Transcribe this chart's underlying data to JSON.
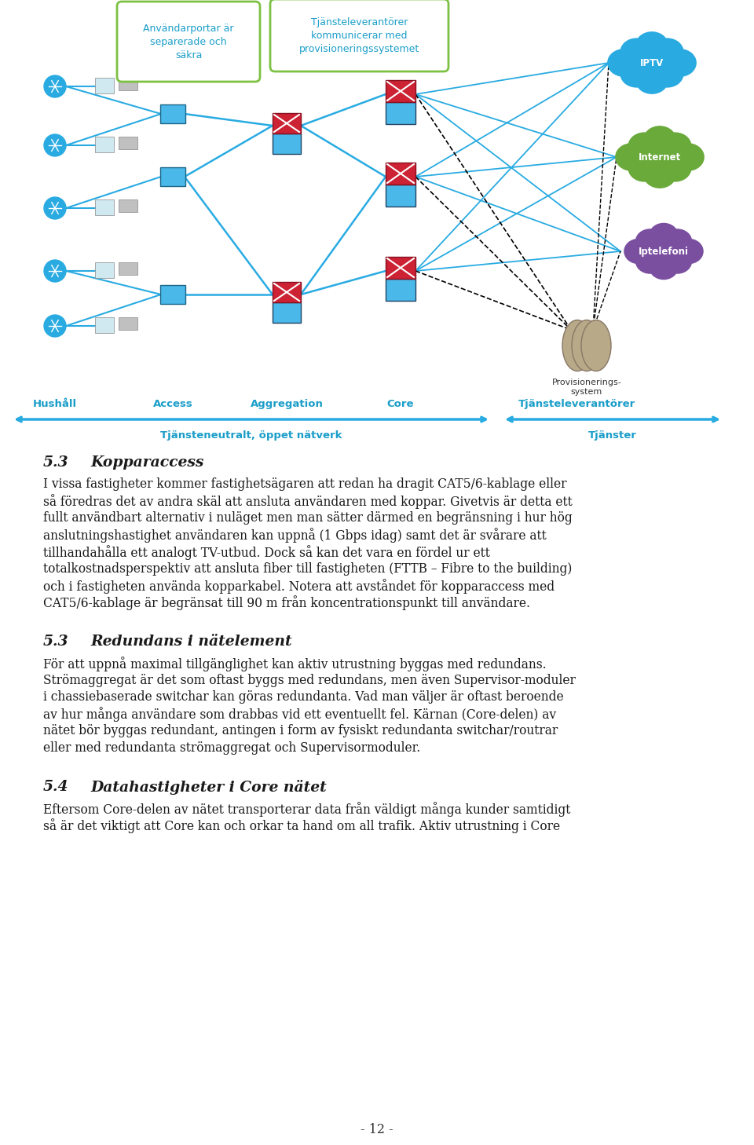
{
  "bg_color": "#ffffff",
  "page_number": "- 12 -",
  "axis_labels": [
    "Hushåll",
    "Access",
    "Aggregation",
    "Core",
    "Tjänsteleverantörer"
  ],
  "axis_label_color": "#1a9ec9",
  "arrow1_label": "Tjänsteneutralt, öppet nätverk",
  "arrow2_label": "Tjänster",
  "callout1_text": "Användarportar är\nseparerade och\nsäkra",
  "callout2_text": "Tjänsteleverantörer\nkommunicerar med\nprovisioneringssystemet",
  "callout_edge_color": "#7dc143",
  "callout_text_color": "#1a9ec9",
  "provisioning_label": "Provisionerings-\nsystem",
  "cloud_iptv_color": "#29abe2",
  "cloud_internet_color": "#6aaa3a",
  "cloud_iptelefoni_color": "#7b4fa0",
  "cloud_iptv_label": "IPTV",
  "cloud_internet_label": "Internet",
  "cloud_iptelefoni_label": "Iptelefoni",
  "cyan": "#29abe2",
  "red_router": "#cc2233",
  "section_53_num": "5.3",
  "section_53_title": "Kopparaccess",
  "section_53_body": [
    "I vissa fastigheter kommer fastighetsägaren att redan ha dragit CAT5/6-kablage eller",
    "så föredras det av andra skäl att ansluta användaren med koppar. Givetvis är detta ett",
    "fullt användbart alternativ i nuläget men man sätter därmed en begränsning i hur hög",
    "anslutningshastighet användaren kan uppnå (1 Gbps idag) samt det är svårare att",
    "tillhandahålla ett analogt TV-utbud. Dock så kan det vara en fördel ur ett",
    "totalkostnadsperspektiv att ansluta fiber till fastigheten (FTTB – Fibre to the building)",
    "och i fastigheten använda kopparkabel. Notera att avståndet för kopparaccess med",
    "CAT5/6-kablage är begränsat till 90 m från koncentrationspunkt till användare."
  ],
  "section_53b_num": "5.3",
  "section_53b_title": "Redundans i nätelement",
  "section_53b_body": [
    "För att uppnå maximal tillgänglighet kan aktiv utrustning byggas med redundans.",
    "Strömaggregat är det som oftast byggs med redundans, men även Supervisor-moduler",
    "i chassiebaserade switchar kan göras redundanta. Vad man väljer är oftast beroende",
    "av hur många användare som drabbas vid ett eventuellt fel. Kärnan (Core-delen) av",
    "nätet bör byggas redundant, antingen i form av fysiskt redundanta switchar/routrar",
    "eller med redundanta strömaggregat och Supervisormoduler."
  ],
  "section_54_num": "5.4",
  "section_54_title": "Datahastigheter i Core nätet",
  "section_54_body": [
    "Eftersom Core-delen av nätet transporterar data från väldigt många kunder samtidigt",
    "så är det viktigt att Core kan och orkar ta hand om all trafik. Aktiv utrustning i Core"
  ]
}
